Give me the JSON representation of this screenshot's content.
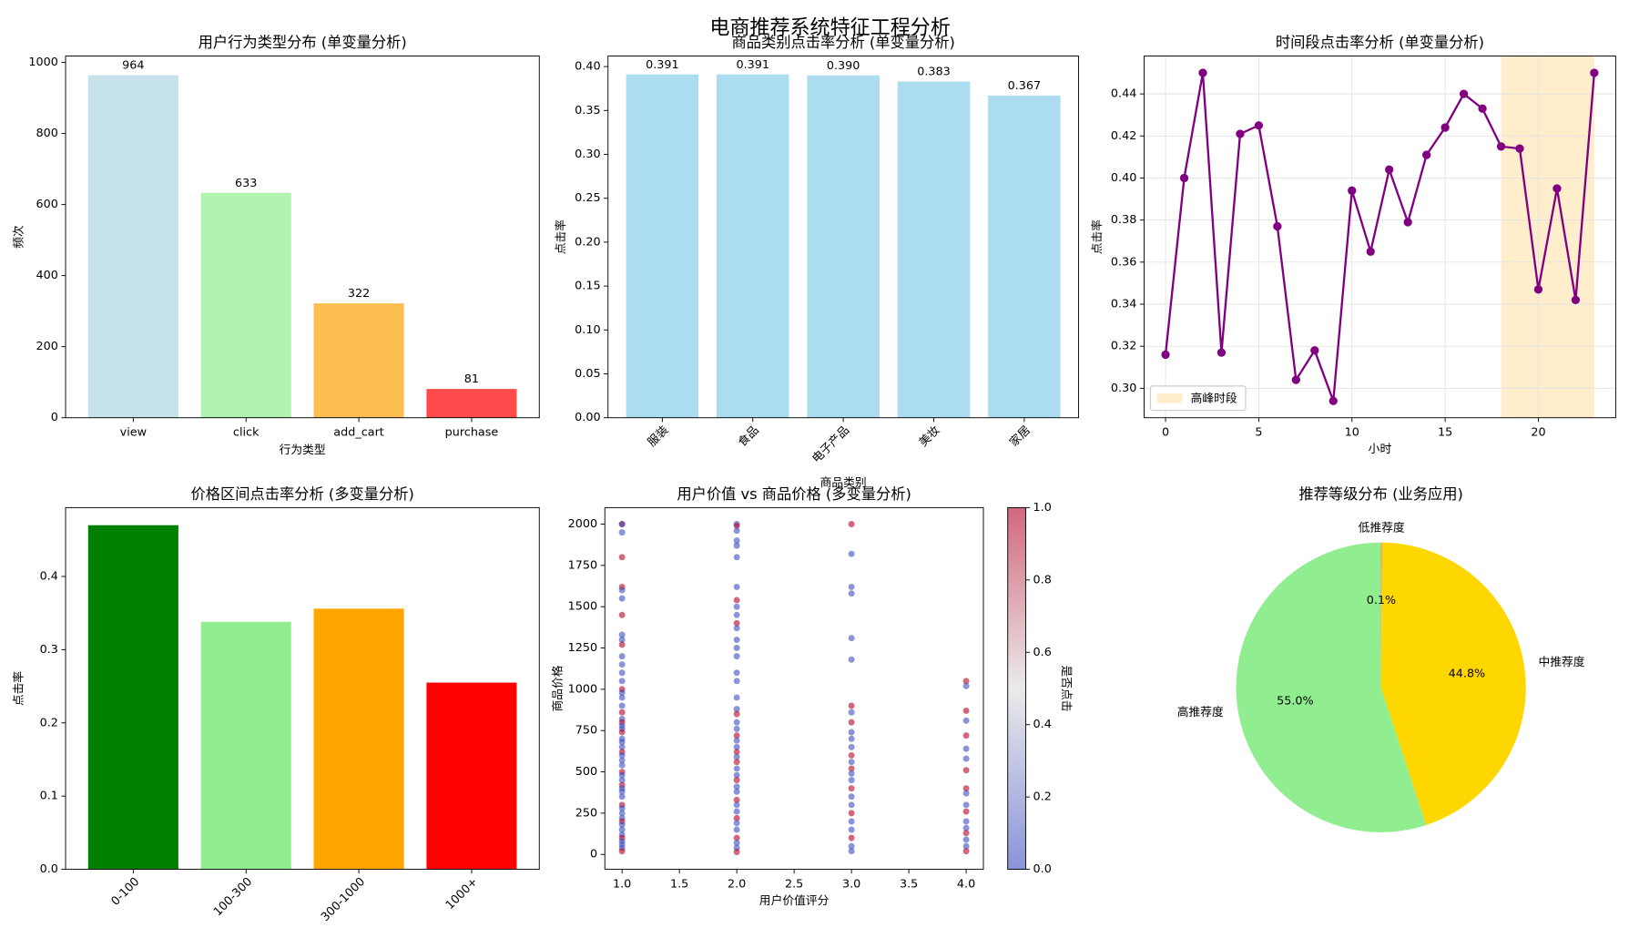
{
  "title": "电商推荐系统特征工程分析",
  "chart_data": [
    {
      "type": "bar",
      "title": "用户行为类型分布 (单变量分析)",
      "x_label": "行为类型",
      "y_label": "频次",
      "categories": [
        "view",
        "click",
        "add_cart",
        "purchase"
      ],
      "values": [
        964,
        633,
        322,
        81
      ],
      "colors": [
        "#c6e3ec",
        "#b0f4b0",
        "#fdbf50",
        "#ff4b4b"
      ],
      "data_labels": true,
      "ylim": [
        0,
        1018
      ],
      "yticks": [
        0,
        200,
        400,
        600,
        800,
        1000
      ],
      "grid": false
    },
    {
      "type": "bar",
      "title": "商品类别点击率分析 (单变量分析)",
      "x_label": "商品类别",
      "y_label": "点击率",
      "categories": [
        "服装",
        "食品",
        "电子产品",
        "美妆",
        "家居"
      ],
      "values": [
        0.391,
        0.391,
        0.39,
        0.383,
        0.367
      ],
      "value_labels": [
        "0.391",
        "0.391",
        "0.390",
        "0.383",
        "0.367"
      ],
      "color": "#abdcef",
      "data_labels": true,
      "xtick_rotation": 45,
      "ylim": [
        0,
        0.412
      ],
      "yticks": [
        {
          "value": 0,
          "label": "0.00"
        },
        {
          "value": 0.05,
          "label": "0.05"
        },
        {
          "value": 0.1,
          "label": "0.10"
        },
        {
          "value": 0.15,
          "label": "0.15"
        },
        {
          "value": 0.2,
          "label": "0.20"
        },
        {
          "value": 0.25,
          "label": "0.25"
        },
        {
          "value": 0.3,
          "label": "0.30"
        },
        {
          "value": 0.35,
          "label": "0.35"
        },
        {
          "value": 0.4,
          "label": "0.40"
        }
      ],
      "grid": false
    },
    {
      "type": "line",
      "title": "时间段点击率分析 (单变量分析)",
      "x_label": "小时",
      "y_label": "点击率",
      "x": [
        0,
        1,
        2,
        3,
        4,
        5,
        6,
        7,
        8,
        9,
        10,
        11,
        12,
        13,
        14,
        15,
        16,
        17,
        18,
        19,
        20,
        21,
        22,
        23
      ],
      "values": [
        0.316,
        0.4,
        0.45,
        0.317,
        0.421,
        0.425,
        0.377,
        0.304,
        0.318,
        0.294,
        0.394,
        0.365,
        0.404,
        0.379,
        0.411,
        0.424,
        0.44,
        0.433,
        0.415,
        0.414,
        0.347,
        0.395,
        0.342,
        0.45
      ],
      "color": "purple",
      "highlight": {
        "from": 18,
        "to": 23,
        "label": "高峰时段",
        "color": "orange"
      },
      "legend": "lower left",
      "xlim": [
        -1.15,
        24.15
      ],
      "xticks": [
        0,
        5,
        10,
        15,
        20
      ],
      "ylim": [
        0.286,
        0.458
      ],
      "yticks": [
        {
          "value": 0.3,
          "label": "0.30"
        },
        {
          "value": 0.32,
          "label": "0.32"
        },
        {
          "value": 0.34,
          "label": "0.34"
        },
        {
          "value": 0.36,
          "label": "0.36"
        },
        {
          "value": 0.38,
          "label": "0.38"
        },
        {
          "value": 0.4,
          "label": "0.40"
        },
        {
          "value": 0.42,
          "label": "0.42"
        },
        {
          "value": 0.44,
          "label": "0.44"
        }
      ],
      "grid": true
    },
    {
      "type": "bar",
      "title": "价格区间点击率分析 (多变量分析)",
      "x_label": "价格区间",
      "y_label": "点击率",
      "categories": [
        "0-100",
        "100-300",
        "300-1000",
        "1000+"
      ],
      "values": [
        0.47,
        0.338,
        0.356,
        0.255
      ],
      "colors": [
        "green",
        "lightgreen",
        "orange",
        "red"
      ],
      "data_labels": false,
      "xtick_rotation": 45,
      "ylim": [
        0,
        0.494
      ],
      "yticks": [
        {
          "value": 0,
          "label": "0.0"
        },
        {
          "value": 0.1,
          "label": "0.1"
        },
        {
          "value": 0.2,
          "label": "0.2"
        },
        {
          "value": 0.3,
          "label": "0.3"
        },
        {
          "value": 0.4,
          "label": "0.4"
        }
      ],
      "grid": false
    },
    {
      "type": "scatter",
      "title": "用户价值 vs 商品价格 (多变量分析)",
      "x_label": "用户价值评分",
      "y_label": "商品价格",
      "x": [
        1,
        1,
        1,
        1,
        1,
        1,
        1,
        1,
        1,
        1,
        1,
        1,
        1,
        1,
        1,
        1,
        1,
        1,
        1,
        1,
        1,
        1,
        1,
        1,
        1,
        1,
        1,
        1,
        1,
        1,
        1,
        1,
        1,
        1,
        1,
        1,
        1,
        1,
        1,
        1,
        1,
        1,
        1,
        1,
        1,
        1,
        1,
        1,
        1,
        1,
        1,
        1,
        2,
        2,
        2,
        2,
        2,
        2,
        2,
        2,
        2,
        2,
        2,
        2,
        2,
        2,
        2,
        2,
        2,
        2,
        2,
        2,
        2,
        2,
        2,
        2,
        2,
        2,
        2,
        2,
        2,
        2,
        2,
        2,
        2,
        2,
        2,
        2,
        2,
        2,
        2,
        2,
        2,
        2,
        2,
        3,
        3,
        3,
        3,
        3,
        3,
        3,
        3,
        3,
        3,
        3,
        3,
        3,
        3,
        3,
        3,
        3,
        3,
        3,
        3,
        3,
        3,
        3,
        3,
        3,
        3,
        4,
        4,
        4,
        4,
        4,
        4,
        4,
        4,
        4,
        4,
        4,
        4,
        4,
        4,
        4,
        4,
        4,
        4
      ],
      "values": [
        2000,
        2000,
        1950,
        1800,
        1620,
        1600,
        1550,
        1450,
        1330,
        1300,
        1270,
        1200,
        1150,
        1100,
        1050,
        1000,
        980,
        950,
        900,
        860,
        820,
        800,
        780,
        760,
        740,
        700,
        680,
        650,
        620,
        600,
        570,
        540,
        500,
        480,
        450,
        420,
        400,
        380,
        350,
        300,
        280,
        250,
        220,
        200,
        180,
        150,
        120,
        100,
        80,
        60,
        40,
        20,
        2000,
        1990,
        1960,
        1900,
        1870,
        1800,
        1620,
        1540,
        1500,
        1450,
        1400,
        1370,
        1300,
        1250,
        1200,
        1100,
        1050,
        950,
        880,
        850,
        800,
        760,
        720,
        690,
        650,
        620,
        590,
        560,
        520,
        480,
        450,
        410,
        380,
        330,
        300,
        260,
        220,
        190,
        150,
        100,
        70,
        40,
        15,
        2000,
        1820,
        1620,
        1580,
        1310,
        1180,
        900,
        860,
        800,
        740,
        700,
        650,
        600,
        560,
        520,
        490,
        450,
        400,
        350,
        300,
        250,
        200,
        150,
        100,
        50,
        20,
        1050,
        1020,
        870,
        810,
        720,
        640,
        580,
        510,
        400,
        370,
        300,
        260,
        200,
        160,
        130,
        90,
        50,
        20
      ],
      "clicked": [
        1,
        0,
        0,
        1,
        1,
        0,
        0,
        1,
        0,
        0,
        1,
        0,
        0,
        0,
        0,
        1,
        0,
        0,
        0,
        1,
        0,
        1,
        0,
        0,
        1,
        0,
        0,
        0,
        1,
        0,
        0,
        0,
        1,
        0,
        0,
        1,
        0,
        0,
        0,
        1,
        0,
        0,
        0,
        1,
        0,
        0,
        0,
        1,
        0,
        0,
        0,
        1,
        0,
        1,
        0,
        0,
        0,
        0,
        0,
        1,
        0,
        0,
        1,
        0,
        0,
        0,
        0,
        0,
        0,
        0,
        0,
        1,
        0,
        0,
        1,
        0,
        0,
        1,
        0,
        1,
        0,
        0,
        1,
        0,
        0,
        1,
        0,
        0,
        1,
        0,
        0,
        1,
        0,
        0,
        1,
        1,
        0,
        0,
        0,
        0,
        0,
        1,
        0,
        1,
        0,
        0,
        0,
        1,
        0,
        1,
        0,
        0,
        1,
        0,
        0,
        1,
        0,
        0,
        1,
        0,
        0,
        1,
        0,
        1,
        0,
        1,
        0,
        0,
        1,
        1,
        0,
        0,
        1,
        0,
        0,
        1,
        0,
        0,
        1
      ],
      "colormap": "coolwarm",
      "alpha": 0.6,
      "colorbar": {
        "label": "是否点击",
        "lim": [
          0,
          1
        ],
        "ticks": [
          {
            "value": 0,
            "label": "0.0"
          },
          {
            "value": 0.2,
            "label": "0.2"
          },
          {
            "value": 0.4,
            "label": "0.4"
          },
          {
            "value": 0.6,
            "label": "0.6"
          },
          {
            "value": 0.8,
            "label": "0.8"
          },
          {
            "value": 1,
            "label": "1.0"
          }
        ]
      },
      "xlim": [
        0.85,
        4.15
      ],
      "xticks": [
        {
          "value": 1,
          "label": "1.0"
        },
        {
          "value": 1.5,
          "label": "1.5"
        },
        {
          "value": 2,
          "label": "2.0"
        },
        {
          "value": 2.5,
          "label": "2.5"
        },
        {
          "value": 3,
          "label": "3.0"
        },
        {
          "value": 3.5,
          "label": "3.5"
        },
        {
          "value": 4,
          "label": "4.0"
        }
      ],
      "ylim": [
        -90,
        2100
      ],
      "yticks": [
        0,
        250,
        500,
        750,
        1000,
        1250,
        1500,
        1750,
        2000
      ],
      "grid": false
    },
    {
      "type": "pie",
      "title": "推荐等级分布 (业务应用)",
      "categories": [
        "高推荐度",
        "中推荐度",
        "低推荐度"
      ],
      "values": [
        55.0,
        44.8,
        0.1
      ],
      "value_labels": [
        "55.0%",
        "44.8%",
        "0.1%"
      ],
      "colors": [
        "lightgreen",
        "gold",
        "#f08080"
      ],
      "start_angle": 90
    }
  ]
}
